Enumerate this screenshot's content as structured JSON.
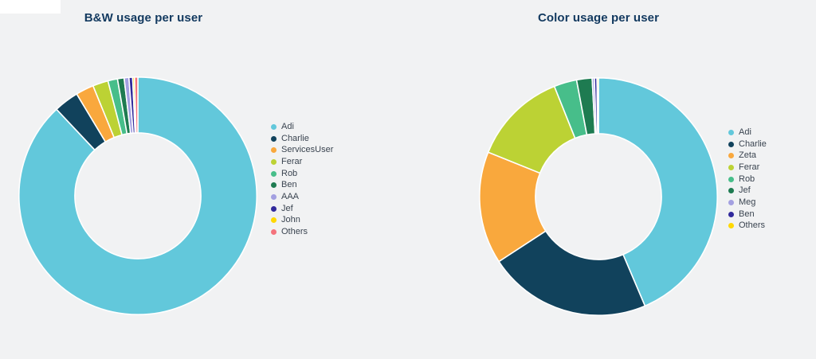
{
  "page": {
    "background": "#F1F2F3",
    "corner_strip_color": "#FFFFFF",
    "title_color": "#12395F",
    "legend_text_color": "#3A4450"
  },
  "chart_data": [
    {
      "type": "pie",
      "subtype": "donut",
      "title": "B&W usage per user",
      "labels": [
        "Adi",
        "Charlie",
        "ServicesUser",
        "Ferar",
        "Rob",
        "Ben",
        "AAA",
        "Jef",
        "John",
        "Others"
      ],
      "values_pct": [
        88.0,
        3.4,
        2.45,
        2.1,
        1.3,
        0.9,
        0.65,
        0.5,
        0.25,
        0.45
      ],
      "colors": [
        "#62C8DB",
        "#11425C",
        "#F9A83D",
        "#BCD234",
        "#47BE8A",
        "#1E7B51",
        "#A3A0E1",
        "#312A9C",
        "#FFD800",
        "#F4737C"
      ],
      "legend_position": "right",
      "hole_ratio": 0.53,
      "start_angle_deg": 0,
      "direction": "clockwise"
    },
    {
      "type": "pie",
      "subtype": "donut",
      "title": "Color usage per user",
      "labels": [
        "Adi",
        "Charlie",
        "Zeta",
        "Ferar",
        "Rob",
        "Jef",
        "Meg",
        "Ben",
        "Others"
      ],
      "values_pct": [
        43.6,
        22.2,
        15.3,
        12.85,
        3.1,
        2.1,
        0.3,
        0.35,
        0.2
      ],
      "colors": [
        "#62C8DB",
        "#11425C",
        "#F9A83D",
        "#BCD234",
        "#47BE8A",
        "#1E7B51",
        "#A3A0E1",
        "#312A9C",
        "#FFD800"
      ],
      "legend_position": "right",
      "hole_ratio": 0.53,
      "start_angle_deg": 0,
      "direction": "clockwise"
    }
  ]
}
